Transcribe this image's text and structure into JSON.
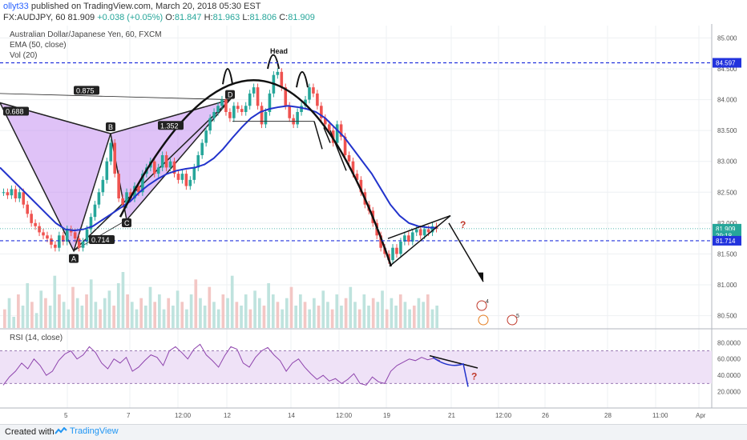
{
  "header": {
    "user": "ollyt33",
    "published_text": "published on TradingView.com, March 20, 2018 05:30 EST",
    "symbol_line": "FX:AUDJPY, 60",
    "close_value": "81.909",
    "change": "+0.038 (+0.05%)",
    "ohlc": {
      "o_label": "O:",
      "o": "81.847",
      "h_label": "H:",
      "h": "81.963",
      "l_label": "L:",
      "l": "81.806",
      "c_label": "C:",
      "c": "81.909"
    }
  },
  "legend": {
    "title": "Australian Dollar/Japanese Yen, 60, FXCM",
    "ema": "EMA (50, close)",
    "vol": "Vol (20)",
    "rsi": "RSI (14, close)"
  },
  "annotations": {
    "head": "Head",
    "pattern_points": [
      "A",
      "B",
      "C",
      "D"
    ],
    "ratios": [
      "0.688",
      "0.875",
      "1.352",
      "0.714"
    ],
    "question": "?",
    "event_counts": [
      "4",
      "5"
    ]
  },
  "price_axis": {
    "ticks": [
      "85.000",
      "84.500",
      "84.000",
      "83.500",
      "83.000",
      "82.500",
      "82.000",
      "81.500",
      "81.000",
      "80.500"
    ],
    "ticks_values": [
      85.0,
      84.5,
      84.0,
      83.5,
      83.0,
      82.5,
      82.0,
      81.5,
      81.0,
      80.5
    ],
    "badges": [
      {
        "value": 84.597,
        "text": "84.597",
        "color": "#2233dd"
      },
      {
        "value": 81.909,
        "text": "81.909",
        "color": "#26a69a"
      },
      {
        "value": 81.8,
        "text": "29:18",
        "color": "#26a69a"
      },
      {
        "value": 81.714,
        "text": "81.714",
        "color": "#2233dd"
      }
    ]
  },
  "rsi_axis": {
    "ticks": [
      "80.0000",
      "60.0000",
      "40.0000",
      "20.0000"
    ],
    "ticks_values": [
      80,
      60,
      40,
      20
    ],
    "band": [
      30,
      70
    ]
  },
  "time_axis": {
    "labels": [
      "5",
      "7",
      "12:00",
      "12",
      "14",
      "12:00",
      "19",
      "21",
      "12:00",
      "26",
      "28",
      "11:00",
      "Apr"
    ]
  },
  "footer": {
    "created_with": "Created with",
    "brand": "TradingView"
  },
  "colors": {
    "bull": "#26a69a",
    "bear": "#ef5350",
    "ema": "#2233cc",
    "pattern_fill": "#c58ff0",
    "rsi_line": "#8e44ad",
    "rsi_band": "#efe2f7",
    "hline": "#2233dd"
  },
  "chart_data": {
    "type": "candlestick",
    "title": "Australian Dollar/Japanese Yen, 60, FXCM",
    "ylim": [
      80.3,
      85.2
    ],
    "close_series": [
      82.5,
      82.45,
      82.55,
      82.4,
      82.5,
      82.3,
      82.15,
      82.0,
      81.95,
      81.85,
      81.8,
      81.75,
      81.65,
      81.6,
      81.8,
      81.7,
      81.9,
      81.85,
      81.75,
      81.6,
      81.7,
      81.9,
      82.1,
      82.3,
      82.5,
      82.7,
      83.0,
      83.3,
      82.8,
      82.4,
      82.3,
      82.5,
      82.4,
      82.6,
      82.5,
      82.8,
      82.9,
      83.0,
      82.8,
      82.9,
      83.1,
      82.9,
      83.0,
      82.8,
      82.7,
      82.8,
      82.6,
      82.7,
      82.9,
      83.1,
      83.3,
      83.5,
      83.7,
      83.8,
      83.9,
      84.0,
      83.8,
      83.7,
      83.9,
      83.85,
      83.8,
      83.9,
      84.1,
      84.2,
      83.9,
      83.6,
      83.8,
      84.1,
      84.4,
      84.45,
      84.2,
      83.9,
      83.7,
      83.6,
      83.8,
      83.9,
      84.0,
      84.2,
      84.1,
      83.9,
      83.7,
      83.6,
      83.5,
      83.3,
      83.6,
      83.4,
      83.1,
      83.0,
      82.8,
      82.7,
      82.5,
      82.3,
      82.2,
      82.0,
      81.8,
      81.6,
      81.5,
      81.4,
      81.6,
      81.5,
      81.7,
      81.8,
      81.7,
      81.85,
      81.9,
      81.8,
      81.9,
      81.85,
      81.95,
      81.909
    ],
    "ema50_series": [
      82.9,
      82.75,
      82.6,
      82.45,
      82.3,
      82.15,
      82.0,
      81.9,
      81.88,
      81.9,
      81.95,
      82.05,
      82.15,
      82.25,
      82.35,
      82.5,
      82.62,
      82.72,
      82.8,
      82.85,
      82.88,
      82.9,
      82.95,
      83.05,
      83.2,
      83.38,
      83.55,
      83.7,
      83.8,
      83.85,
      83.88,
      83.9,
      83.88,
      83.85,
      83.8,
      83.7,
      83.55,
      83.4,
      83.2,
      83.0,
      82.8,
      82.55,
      82.3,
      82.12,
      82.0,
      81.95,
      81.93,
      81.92
    ],
    "rsi_series": [
      28,
      38,
      45,
      55,
      48,
      60,
      52,
      40,
      45,
      58,
      66,
      70,
      60,
      65,
      75,
      68,
      55,
      48,
      60,
      55,
      62,
      45,
      50,
      58,
      65,
      62,
      52,
      70,
      75,
      68,
      60,
      72,
      78,
      65,
      58,
      50,
      64,
      75,
      72,
      55,
      50,
      62,
      70,
      74,
      65,
      58,
      45,
      55,
      60,
      50,
      42,
      35,
      40,
      33,
      36,
      30,
      35,
      42,
      30,
      28,
      38,
      32,
      30,
      45,
      52,
      56,
      60,
      58,
      62,
      59,
      61,
      58
    ],
    "volume_series": [
      5,
      8,
      3,
      9,
      6,
      12,
      7,
      4,
      10,
      8,
      6,
      14,
      9,
      7,
      5,
      11,
      8,
      6,
      9,
      13,
      7,
      5,
      8,
      10,
      6,
      12,
      15,
      9,
      7,
      5,
      8,
      6,
      11,
      7,
      9,
      5,
      8,
      6,
      10,
      7,
      5,
      9,
      13,
      8,
      6,
      11,
      7,
      5,
      9,
      8,
      14,
      7,
      6,
      9,
      5,
      10,
      8,
      6,
      12,
      9,
      7,
      5,
      8,
      11,
      6,
      9,
      7,
      5,
      8,
      6,
      10,
      7,
      5,
      9,
      6,
      8,
      11,
      7,
      5,
      9,
      6,
      8,
      7,
      10,
      5,
      8,
      6,
      9,
      7,
      5,
      6,
      8,
      7,
      9,
      5,
      6
    ],
    "hlines": [
      84.597,
      81.714
    ],
    "xlabels": [
      "5",
      "7",
      "12:00",
      "12",
      "14",
      "12:00",
      "19",
      "21",
      "12:00",
      "26",
      "28",
      "11:00",
      "Apr"
    ]
  }
}
